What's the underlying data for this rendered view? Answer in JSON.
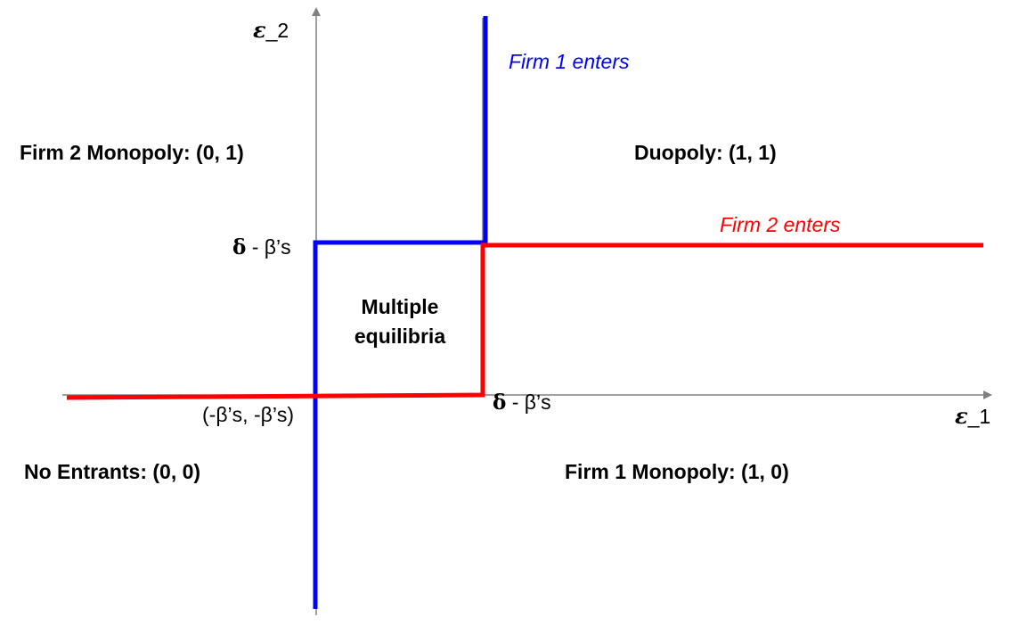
{
  "axes": {
    "x_label_sym": "ε",
    "x_label_sub": "_1",
    "y_label_sym": "ε",
    "y_label_sub": "_2"
  },
  "tick_labels": {
    "y_threshold_sym": "δ",
    "y_threshold_rest": " - β’s",
    "x_threshold_sym": "δ",
    "x_threshold_rest": " - β’s",
    "origin": "(-β’s, -β’s)"
  },
  "regions": {
    "firm2_monopoly": "Firm 2 Monopoly: (0, 1)",
    "duopoly": "Duopoly: (1, 1)",
    "multiple_line1": "Multiple",
    "multiple_line2": "equilibria",
    "no_entrants": "No Entrants: (0, 0)",
    "firm1_monopoly": "Firm 1 Monopoly: (1, 0)"
  },
  "boundary_labels": {
    "firm1_enters": "Firm 1 enters",
    "firm2_enters": "Firm 2 enters"
  },
  "colors": {
    "firm1": "#0000ff",
    "firm2": "#ff0000",
    "axis": "#808080"
  }
}
